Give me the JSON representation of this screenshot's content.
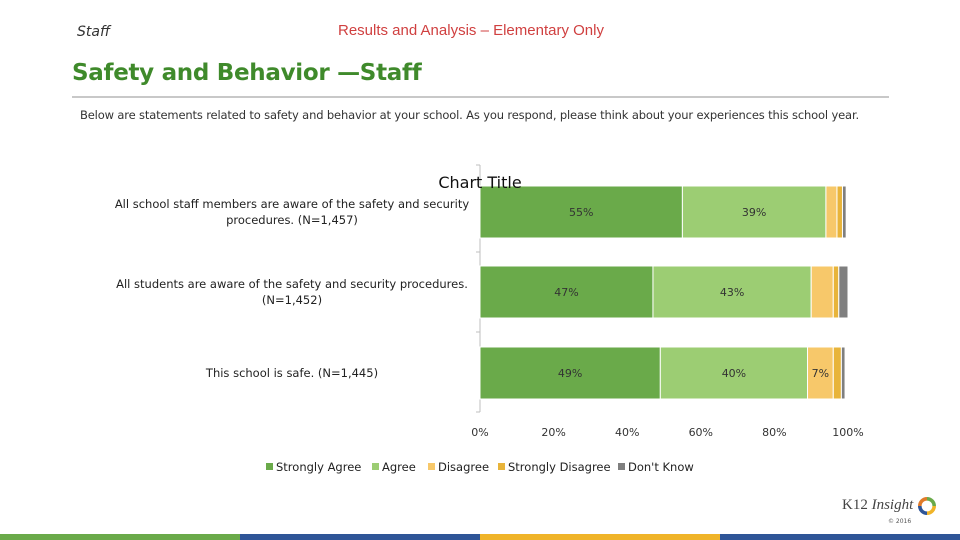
{
  "header": {
    "staff_label": "Staff",
    "section_title": "Results and Analysis – Elementary Only",
    "page_title": "Safety and Behavior —Staff",
    "intro": "Below are statements related to safety and behavior at your school. As you respond, please think about your experiences this school year."
  },
  "chart_data": {
    "type": "bar",
    "orientation": "horizontal",
    "stacked": true,
    "title": "Chart Title",
    "categories": [
      "All school staff members are aware of the safety and security procedures. (N=1,457)",
      "All students are aware of the safety and security procedures. (N=1,452)",
      "This school is safe. (N=1,445)"
    ],
    "series": [
      {
        "name": "Strongly Agree",
        "color": "#6aaa4a",
        "values": [
          55,
          47,
          49
        ],
        "labels": [
          "55%",
          "47%",
          "49%"
        ]
      },
      {
        "name": "Agree",
        "color": "#9ccd73",
        "values": [
          39,
          43,
          40
        ],
        "labels": [
          "39%",
          "43%",
          "40%"
        ]
      },
      {
        "name": "Disagree",
        "color": "#f7c86a",
        "values": [
          3,
          6,
          7
        ],
        "labels": [
          "",
          "",
          "7%"
        ]
      },
      {
        "name": "Strongly Disagree",
        "color": "#e8b43a",
        "values": [
          1.5,
          1.5,
          2.2
        ],
        "labels": [
          "",
          "",
          ""
        ]
      },
      {
        "name": "Don't Know",
        "color": "#7f7f7f",
        "values": [
          1,
          2.5,
          1
        ],
        "labels": [
          "",
          "",
          ""
        ]
      }
    ],
    "xlim": [
      0,
      100
    ],
    "xticks": [
      "0%",
      "20%",
      "40%",
      "60%",
      "80%",
      "100%"
    ],
    "legend_position": "bottom",
    "grid": false
  },
  "footer": {
    "logo_k12": "K12",
    "logo_insight": "Insight",
    "copyright": "© 2016",
    "bar_colors": [
      "#6aaa4a",
      "#2f5597",
      "#f0b429",
      "#2f5597"
    ]
  }
}
